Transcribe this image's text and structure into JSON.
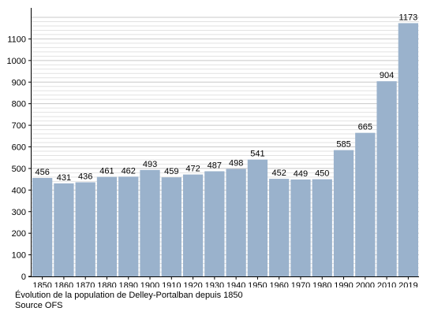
{
  "chart_data": {
    "type": "bar",
    "categories": [
      "1850",
      "1860",
      "1870",
      "1880",
      "1890",
      "1900",
      "1910",
      "1920",
      "1930",
      "1940",
      "1950",
      "1960",
      "1970",
      "1980",
      "1990",
      "2000",
      "2010",
      "2019"
    ],
    "values": [
      456,
      431,
      436,
      461,
      462,
      493,
      459,
      472,
      487,
      498,
      541,
      452,
      449,
      450,
      585,
      665,
      904,
      1173
    ],
    "y_ticks": [
      0,
      100,
      200,
      300,
      400,
      500,
      600,
      700,
      800,
      900,
      1000,
      1100
    ],
    "ylim": [
      0,
      1200
    ],
    "grid": true,
    "data_labels": true,
    "bar_color": "#9ab2cc",
    "title": "",
    "xlabel": "",
    "ylabel": ""
  },
  "caption": {
    "line1": "Évolution de la population de Delley-Portalban depuis 1850",
    "line2": "Source OFS"
  }
}
